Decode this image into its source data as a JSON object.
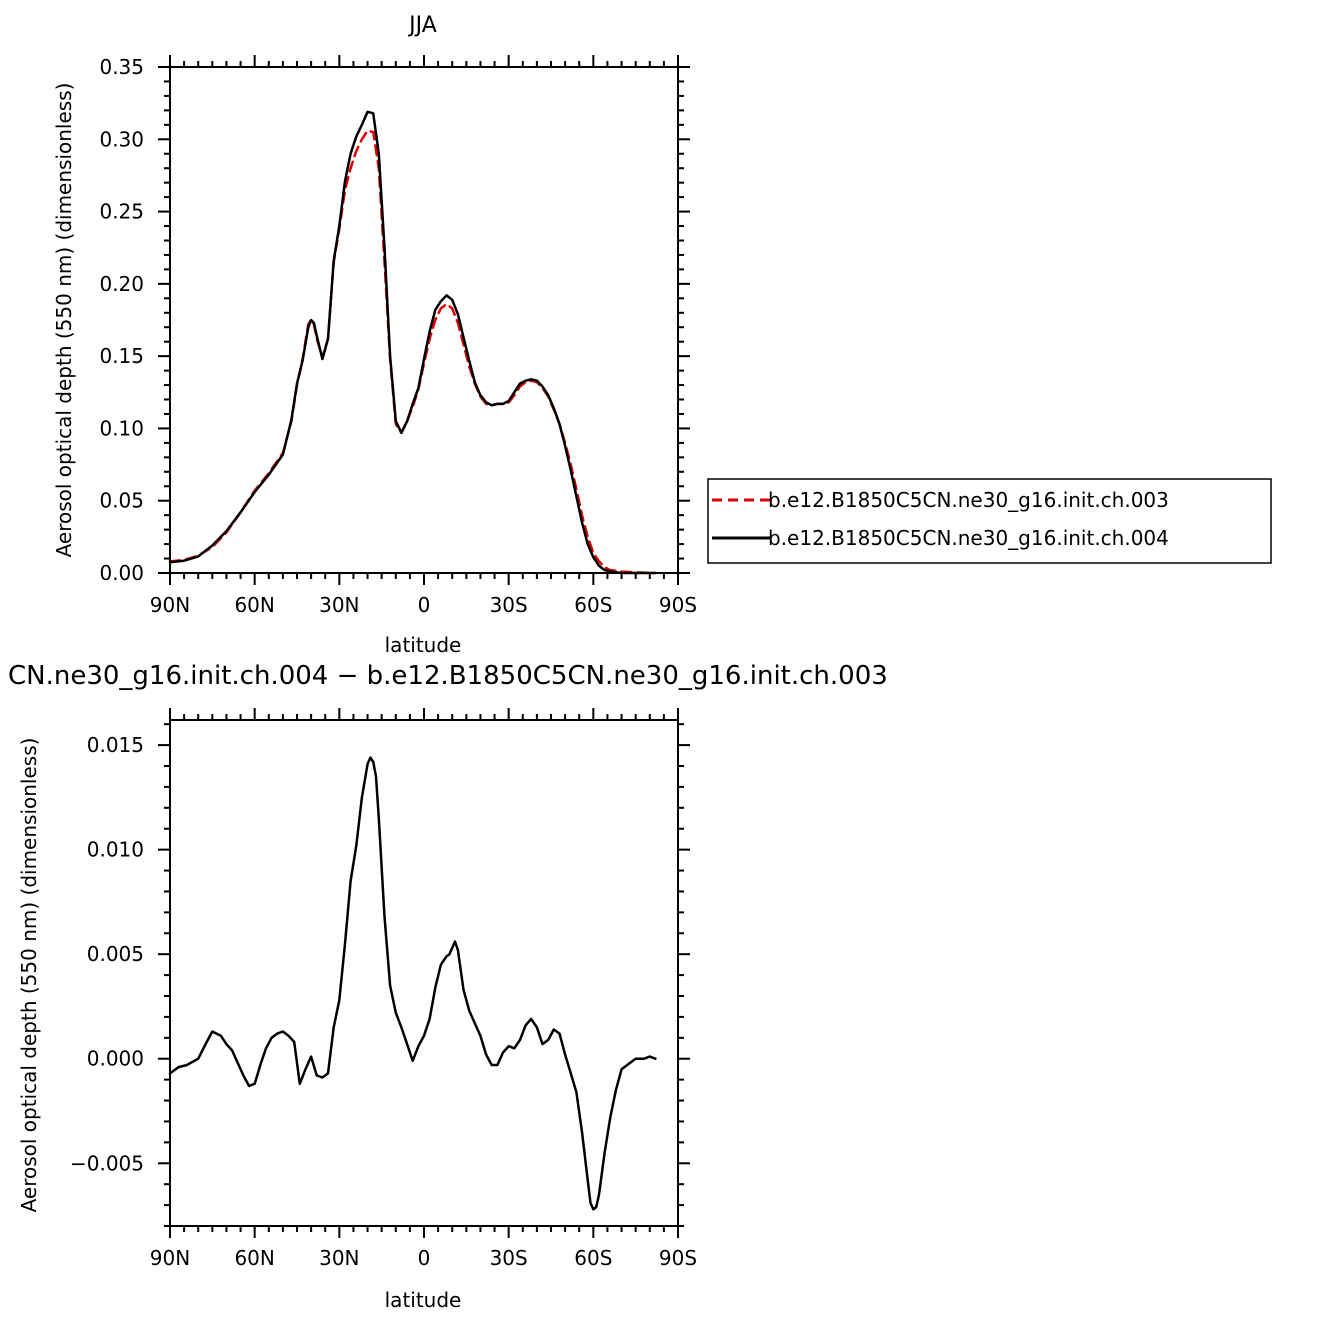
{
  "chart_data": [
    {
      "type": "line",
      "title": "JJA",
      "xlabel": "latitude",
      "ylabel": "Aerosol optical depth (550 nm) (dimensionless)",
      "xlim": [
        90,
        -90
      ],
      "ylim": [
        0,
        0.35
      ],
      "xticks": [
        90,
        60,
        30,
        0,
        -30,
        -60,
        -90
      ],
      "xticklabels": [
        "90N",
        "60N",
        "30N",
        "0",
        "30S",
        "60S",
        "90S"
      ],
      "yticks": [
        0,
        0.05,
        0.1,
        0.15,
        0.2,
        0.25,
        0.3,
        0.35
      ],
      "yticklabels": [
        "0.00",
        "0.05",
        "0.10",
        "0.15",
        "0.20",
        "0.25",
        "0.30",
        "0.35"
      ],
      "legend_position": "right",
      "series": [
        {
          "name": "b.e12.B1850C5CN.ne30_g16.init.ch.003",
          "color": "#e00000",
          "dash": "dashed",
          "x": [
            90,
            85,
            80,
            75,
            70,
            65,
            60,
            55,
            50,
            47,
            45,
            43,
            41,
            40,
            39,
            38,
            36,
            34,
            32,
            30,
            28,
            26,
            24,
            22,
            20,
            18,
            16,
            14,
            12,
            10,
            8,
            6,
            4,
            2,
            0,
            -2,
            -4,
            -6,
            -8,
            -10,
            -12,
            -14,
            -16,
            -18,
            -20,
            -22,
            -24,
            -26,
            -28,
            -30,
            -32,
            -34,
            -36,
            -38,
            -40,
            -42,
            -44,
            -46,
            -48,
            -50,
            -52,
            -54,
            -56,
            -58,
            -60,
            -62,
            -64,
            -66,
            -70,
            -75,
            -80,
            -82
          ],
          "y": [
            0.008,
            0.009,
            0.012,
            0.018,
            0.028,
            0.042,
            0.057,
            0.069,
            0.083,
            0.105,
            0.13,
            0.148,
            0.172,
            0.175,
            0.172,
            0.162,
            0.149,
            0.162,
            0.215,
            0.238,
            0.265,
            0.28,
            0.292,
            0.3,
            0.306,
            0.305,
            0.28,
            0.215,
            0.148,
            0.103,
            0.097,
            0.105,
            0.115,
            0.127,
            0.145,
            0.162,
            0.175,
            0.183,
            0.186,
            0.183,
            0.173,
            0.158,
            0.143,
            0.131,
            0.122,
            0.117,
            0.116,
            0.117,
            0.117,
            0.118,
            0.123,
            0.129,
            0.132,
            0.133,
            0.132,
            0.128,
            0.122,
            0.113,
            0.103,
            0.09,
            0.075,
            0.058,
            0.04,
            0.025,
            0.014,
            0.008,
            0.004,
            0.002,
            0.001,
            0.0005,
            0.0,
            0.0
          ]
        },
        {
          "name": "b.e12.B1850C5CN.ne30_g16.init.ch.004",
          "color": "#000000",
          "dash": "solid",
          "x": [
            90,
            85,
            80,
            75,
            70,
            65,
            60,
            55,
            50,
            47,
            45,
            43,
            41,
            40,
            39,
            38,
            36,
            34,
            32,
            30,
            28,
            26,
            24,
            22,
            20,
            18,
            16,
            14,
            12,
            10,
            8,
            6,
            4,
            2,
            0,
            -2,
            -4,
            -6,
            -8,
            -10,
            -12,
            -14,
            -16,
            -18,
            -20,
            -22,
            -24,
            -26,
            -28,
            -30,
            -32,
            -34,
            -36,
            -38,
            -40,
            -42,
            -44,
            -46,
            -48,
            -50,
            -52,
            -54,
            -56,
            -58,
            -60,
            -62,
            -64,
            -66,
            -70,
            -75,
            -80,
            -82
          ],
          "y": [
            0.0075,
            0.0085,
            0.0115,
            0.019,
            0.029,
            0.042,
            0.056,
            0.068,
            0.082,
            0.106,
            0.131,
            0.147,
            0.17,
            0.175,
            0.173,
            0.164,
            0.148,
            0.162,
            0.216,
            0.24,
            0.271,
            0.29,
            0.302,
            0.31,
            0.319,
            0.318,
            0.29,
            0.225,
            0.15,
            0.105,
            0.097,
            0.105,
            0.117,
            0.128,
            0.148,
            0.167,
            0.182,
            0.188,
            0.192,
            0.189,
            0.179,
            0.163,
            0.147,
            0.132,
            0.123,
            0.118,
            0.116,
            0.117,
            0.117,
            0.119,
            0.125,
            0.131,
            0.133,
            0.134,
            0.133,
            0.129,
            0.123,
            0.114,
            0.103,
            0.088,
            0.071,
            0.053,
            0.035,
            0.02,
            0.011,
            0.005,
            0.002,
            0.001,
            0.0,
            0.0,
            0.0,
            0.0
          ]
        }
      ]
    },
    {
      "type": "line",
      "title": "CN.ne30_g16.init.ch.004 − b.e12.B1850C5CN.ne30_g16.init.ch.003",
      "xlabel": "latitude",
      "ylabel": "Aerosol optical depth (550 nm) (dimensionless)",
      "xlim": [
        90,
        -90
      ],
      "ylim": [
        -0.008,
        0.0162
      ],
      "xticks": [
        90,
        60,
        30,
        0,
        -30,
        -60,
        -90
      ],
      "xticklabels": [
        "90N",
        "60N",
        "30N",
        "0",
        "30S",
        "60S",
        "90S"
      ],
      "yticks": [
        -0.005,
        0,
        0.005,
        0.01,
        0.015
      ],
      "yticklabels": [
        "−0.005",
        "0.000",
        "0.005",
        "0.010",
        "0.015"
      ],
      "series": [
        {
          "color": "#000000",
          "dash": "solid",
          "x": [
            90,
            87,
            84,
            80,
            77,
            75,
            72,
            70,
            68,
            66,
            64,
            62,
            60,
            58,
            56,
            54,
            52,
            50,
            48,
            46,
            44,
            42,
            40,
            38,
            36,
            34,
            32,
            30,
            28,
            26,
            24,
            22,
            20,
            19,
            18,
            17,
            16,
            14,
            12,
            10,
            8,
            6,
            4,
            2,
            0,
            -2,
            -4,
            -6,
            -8,
            -9,
            -10,
            -11,
            -12,
            -14,
            -16,
            -18,
            -20,
            -22,
            -24,
            -26,
            -28,
            -30,
            -32,
            -34,
            -36,
            -38,
            -40,
            -42,
            -44,
            -46,
            -48,
            -50,
            -52,
            -54,
            -56,
            -58,
            -59,
            -60,
            -61,
            -62,
            -64,
            -66,
            -68,
            -70,
            -72,
            -75,
            -78,
            -80,
            -82
          ],
          "y": [
            -0.0007,
            -0.0004,
            -0.0003,
            0.0,
            0.0008,
            0.0013,
            0.0011,
            0.0007,
            0.0004,
            -0.0002,
            -0.0008,
            -0.0013,
            -0.0012,
            -0.0003,
            0.0005,
            0.001,
            0.0012,
            0.0013,
            0.0011,
            0.0008,
            -0.0012,
            -0.0005,
            0.0001,
            -0.0008,
            -0.0009,
            -0.0007,
            0.0015,
            0.0028,
            0.0055,
            0.0085,
            0.0102,
            0.0125,
            0.0141,
            0.0144,
            0.0142,
            0.0135,
            0.0115,
            0.0068,
            0.0035,
            0.0022,
            0.0015,
            0.0007,
            -0.0001,
            0.0006,
            0.0011,
            0.0019,
            0.0034,
            0.0045,
            0.0049,
            0.005,
            0.0053,
            0.0056,
            0.0052,
            0.0033,
            0.0023,
            0.0017,
            0.0011,
            0.0002,
            -0.0003,
            -0.0003,
            0.0003,
            0.0006,
            0.0005,
            0.0009,
            0.0016,
            0.0019,
            0.0015,
            0.0007,
            0.0009,
            0.0014,
            0.0012,
            0.0002,
            -0.0007,
            -0.0016,
            -0.0035,
            -0.0058,
            -0.0069,
            -0.0072,
            -0.0071,
            -0.0065,
            -0.0045,
            -0.0028,
            -0.0015,
            -0.0005,
            -0.0003,
            0.0,
            0.0,
            0.0001,
            0.0
          ]
        }
      ]
    }
  ]
}
